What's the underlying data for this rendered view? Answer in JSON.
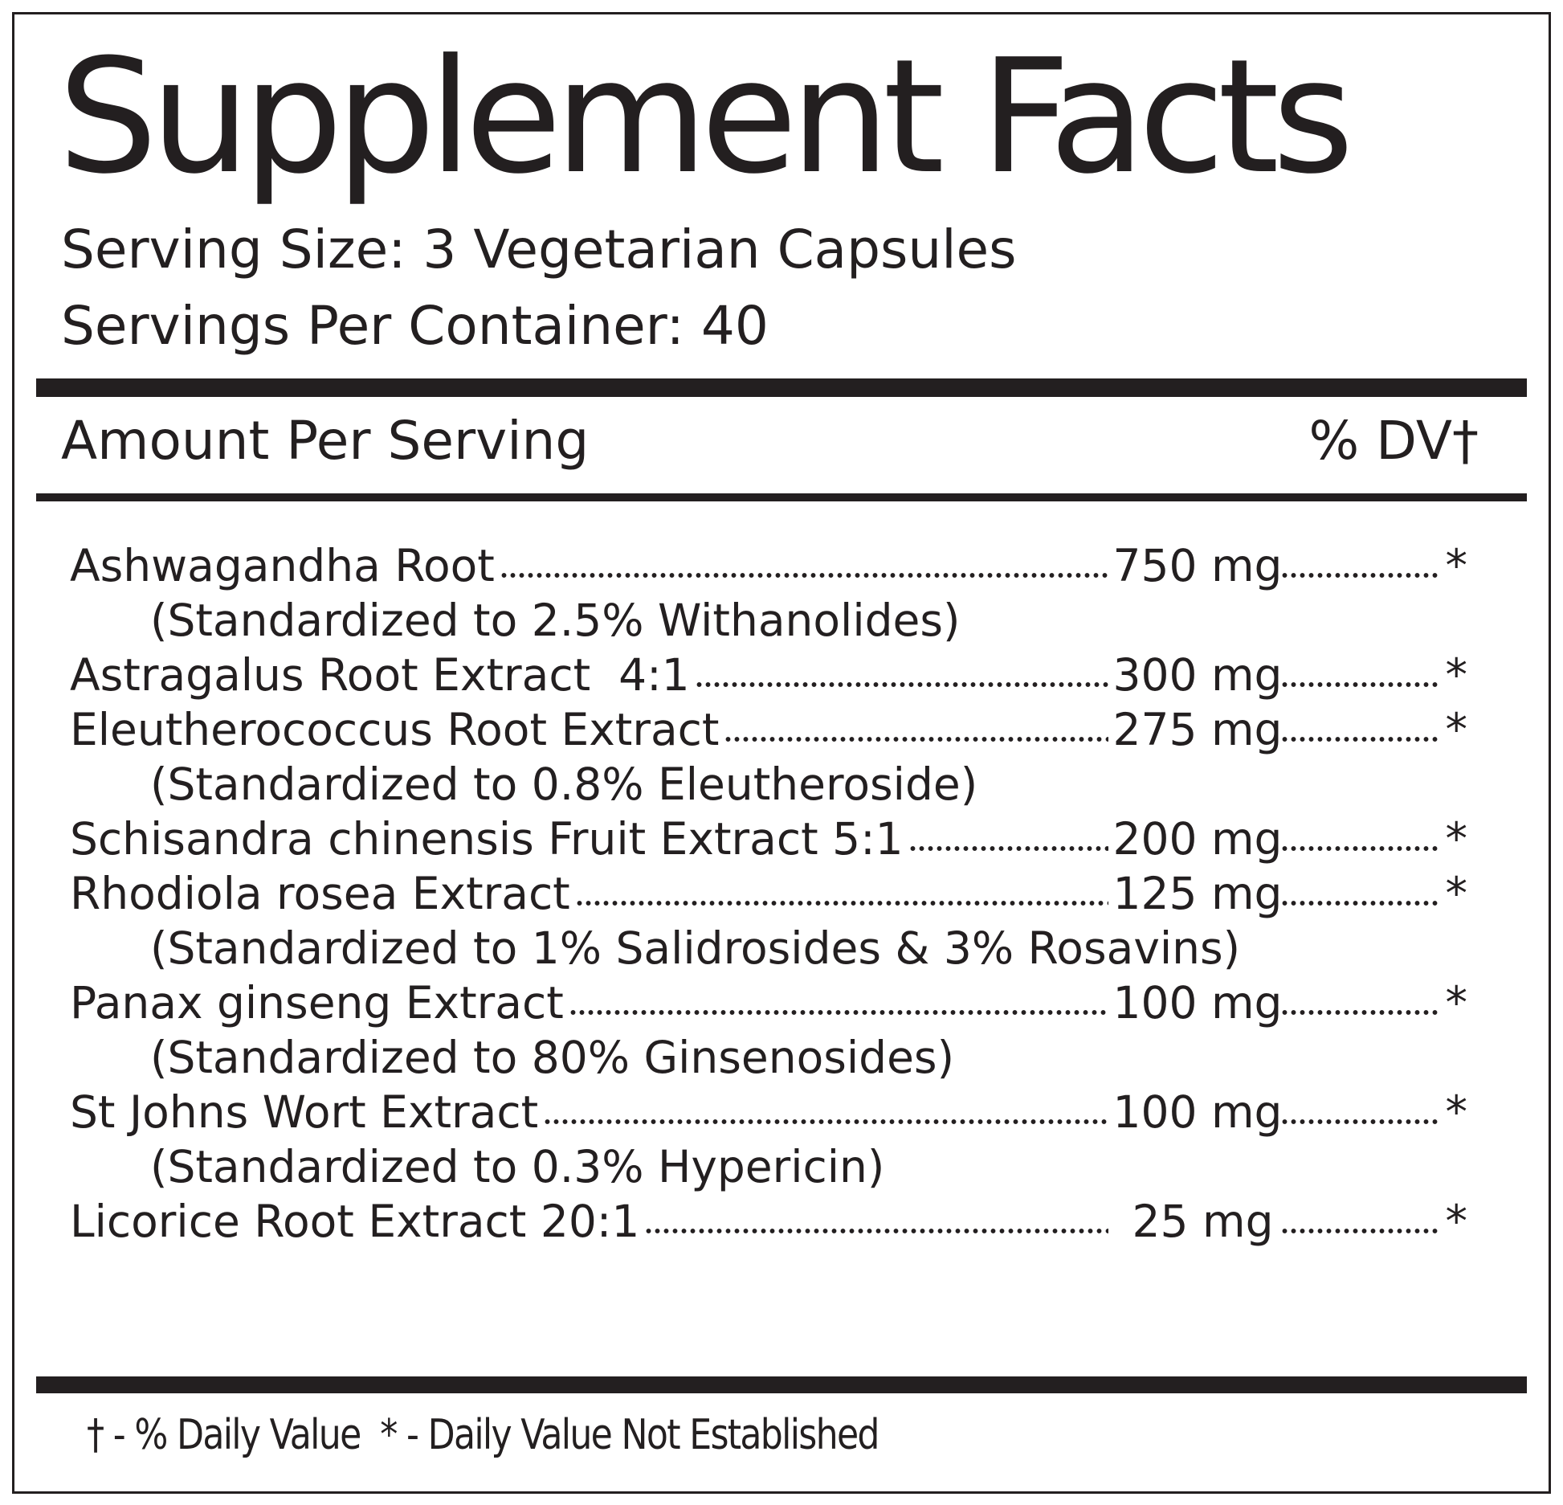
{
  "title": "Supplement Facts",
  "serving_size": "Serving Size: 3 Vegetarian Capsules",
  "servings_per_container": "Servings Per Container: 40",
  "header": {
    "amount": "Amount Per Serving",
    "dv": "% DV†"
  },
  "ingredients": [
    {
      "name": "Ashwagandha Root",
      "amount": "750 mg",
      "dv": "*",
      "note": "(Standardized to 2.5% Withanolides)"
    },
    {
      "name": "Astragalus Root Extract  4:1",
      "amount": "300 mg",
      "dv": "*"
    },
    {
      "name": "Eleutherococcus Root Extract",
      "amount": "275 mg",
      "dv": "*",
      "note": "(Standardized to 0.8% Eleutheroside)"
    },
    {
      "name": "Schisandra chinensis Fruit Extract 5:1",
      "amount": "200 mg",
      "dv": "*"
    },
    {
      "name": "Rhodiola rosea Extract",
      "amount": "125 mg",
      "dv": "*",
      "note": "(Standardized to 1% Salidrosides & 3% Rosavins)"
    },
    {
      "name": "Panax ginseng Extract",
      "amount": "100 mg",
      "dv": "*",
      "note": "(Standardized to 80% Ginsenosides)"
    },
    {
      "name": "St Johns Wort Extract",
      "amount": "100 mg",
      "dv": "*",
      "note": "(Standardized to 0.3% Hypericin)"
    },
    {
      "name": "Licorice Root Extract 20:1",
      "amount": "25 mg",
      "dv": "*"
    }
  ],
  "footnote": "† - % Daily Value  * - Daily Value Not Established"
}
